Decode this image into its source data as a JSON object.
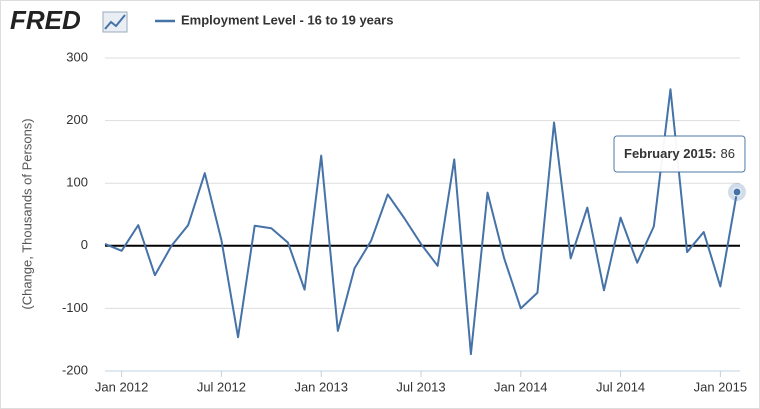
{
  "logo": "FRED",
  "chart_data": {
    "type": "line",
    "ylabel": "(Change, Thousands of Persons)",
    "x": [
      "2011-12",
      "2012-01",
      "2012-02",
      "2012-03",
      "2012-04",
      "2012-05",
      "2012-06",
      "2012-07",
      "2012-08",
      "2012-09",
      "2012-10",
      "2012-11",
      "2012-12",
      "2013-01",
      "2013-02",
      "2013-03",
      "2013-04",
      "2013-05",
      "2013-06",
      "2013-07",
      "2013-08",
      "2013-09",
      "2013-10",
      "2013-11",
      "2013-12",
      "2014-01",
      "2014-02",
      "2014-03",
      "2014-04",
      "2014-05",
      "2014-06",
      "2014-07",
      "2014-08",
      "2014-09",
      "2014-10",
      "2014-11",
      "2014-12",
      "2015-01",
      "2015-02"
    ],
    "series": [
      {
        "name": "Employment Level - 16 to 19 years",
        "color": "#4572a7",
        "values": [
          3,
          -8,
          33,
          -47,
          0,
          33,
          116,
          9,
          -146,
          32,
          28,
          5,
          -70,
          144,
          -136,
          -36,
          8,
          82,
          44,
          3,
          -32,
          138,
          -173,
          85,
          -20,
          -100,
          -75,
          197,
          -20,
          61,
          -71,
          45,
          -27,
          31,
          250,
          -10,
          22,
          -65,
          86
        ]
      }
    ],
    "xticks": [
      {
        "value": "2012-01",
        "label": "Jan 2012"
      },
      {
        "value": "2012-07",
        "label": "Jul 2012"
      },
      {
        "value": "2013-01",
        "label": "Jan 2013"
      },
      {
        "value": "2013-07",
        "label": "Jul 2013"
      },
      {
        "value": "2014-01",
        "label": "Jan 2014"
      },
      {
        "value": "2014-07",
        "label": "Jul 2014"
      },
      {
        "value": "2015-01",
        "label": "Jan 2015"
      }
    ],
    "xlim": [
      "2011-12",
      "2015-02"
    ],
    "ylim": [
      -200,
      300
    ],
    "yticks": [
      -200,
      -100,
      0,
      100,
      200,
      300
    ],
    "grid": true,
    "tooltip": {
      "label": "February 2015:"
    }
  }
}
